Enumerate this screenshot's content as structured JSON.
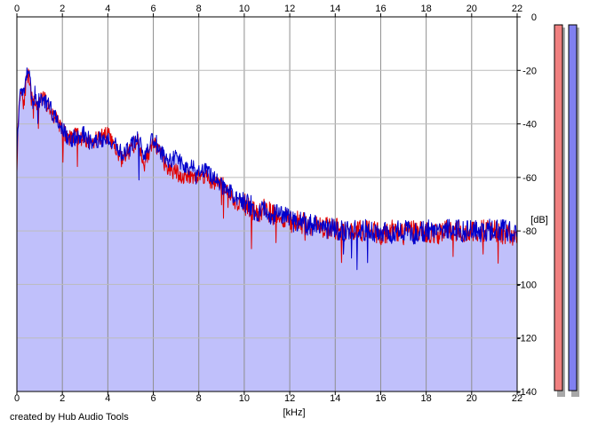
{
  "chart_data": {
    "type": "area",
    "xlabel": "[kHz]",
    "ylabel": "[dB]",
    "xlim": [
      0,
      22
    ],
    "ylim": [
      -140,
      0
    ],
    "x_ticks": [
      "0",
      "2",
      "4",
      "6",
      "8",
      "10",
      "12",
      "14",
      "16",
      "18",
      "20",
      "22"
    ],
    "y_ticks": [
      "0",
      "-20",
      "-40",
      "-60",
      "-80",
      "-100",
      "-120",
      "-140"
    ],
    "grid": true,
    "series": [
      {
        "color": "#e00000",
        "x": [
          0.0,
          0.1,
          0.2,
          0.3,
          0.4,
          0.5,
          0.6,
          0.7,
          0.8,
          0.9,
          1.0,
          1.2,
          1.4,
          1.6,
          1.8,
          2.0,
          2.3,
          2.6,
          3.0,
          3.3,
          3.6,
          4.0,
          4.3,
          4.6,
          5.0,
          5.3,
          5.6,
          6.0,
          6.3,
          6.6,
          7.0,
          7.3,
          7.6,
          8.0,
          8.3,
          8.6,
          9.0,
          9.3,
          9.6,
          10.0,
          10.5,
          11.0,
          11.5,
          12.0,
          12.5,
          13.0,
          13.5,
          14.0,
          14.5,
          15.0,
          15.5,
          16.0,
          16.5,
          17.0,
          17.5,
          18.0,
          18.5,
          19.0,
          19.5,
          20.0,
          20.5,
          21.0,
          21.5,
          22.0
        ],
        "values": [
          -55,
          -30,
          -27,
          -32,
          -25,
          -22,
          -28,
          -33,
          -30,
          -35,
          -32,
          -30,
          -34,
          -37,
          -38,
          -43,
          -45,
          -44,
          -46,
          -47,
          -45,
          -44,
          -49,
          -53,
          -50,
          -46,
          -55,
          -47,
          -51,
          -57,
          -58,
          -60,
          -59,
          -60,
          -59,
          -62,
          -62,
          -66,
          -69,
          -70,
          -73,
          -72,
          -75,
          -76,
          -77,
          -78,
          -79,
          -79,
          -80,
          -80,
          -80,
          -81,
          -80,
          -81,
          -80,
          -81,
          -81,
          -80,
          -80,
          -81,
          -80,
          -80,
          -81,
          -82
        ]
      },
      {
        "color": "#0000cc",
        "x": [
          0.0,
          0.1,
          0.2,
          0.3,
          0.4,
          0.5,
          0.6,
          0.7,
          0.8,
          0.9,
          1.0,
          1.2,
          1.4,
          1.6,
          1.8,
          2.0,
          2.3,
          2.6,
          3.0,
          3.3,
          3.6,
          4.0,
          4.3,
          4.6,
          5.0,
          5.3,
          5.6,
          6.0,
          6.3,
          6.6,
          7.0,
          7.3,
          7.6,
          8.0,
          8.3,
          8.6,
          9.0,
          9.3,
          9.6,
          10.0,
          10.5,
          11.0,
          11.5,
          12.0,
          12.5,
          13.0,
          13.5,
          14.0,
          14.5,
          15.0,
          15.5,
          16.0,
          16.5,
          17.0,
          17.5,
          18.0,
          18.5,
          19.0,
          19.5,
          20.0,
          20.5,
          21.0,
          21.5,
          22.0
        ],
        "values": [
          -50,
          -32,
          -26,
          -30,
          -21,
          -19,
          -25,
          -35,
          -28,
          -33,
          -31,
          -32,
          -33,
          -36,
          -40,
          -42,
          -46,
          -45,
          -44,
          -48,
          -46,
          -45,
          -48,
          -51,
          -49,
          -44,
          -52,
          -45,
          -50,
          -54,
          -52,
          -55,
          -56,
          -58,
          -57,
          -60,
          -63,
          -65,
          -67,
          -69,
          -72,
          -73,
          -74,
          -76,
          -77,
          -78,
          -79,
          -79,
          -80,
          -79,
          -80,
          -80,
          -80,
          -80,
          -81,
          -80,
          -80,
          -79,
          -80,
          -80,
          -80,
          -79,
          -80,
          -80
        ]
      }
    ],
    "level_meters": [
      {
        "color": "#f08080",
        "level": 0.0
      },
      {
        "color": "#8080f0",
        "level": 0.0
      }
    ]
  },
  "footer": {
    "credit": "created by Hub Audio Tools"
  },
  "colors": {
    "fill": "#c0c0fb",
    "grid": "#8f8f8f",
    "meter_left": "#f08080",
    "meter_right": "#8080f0"
  }
}
